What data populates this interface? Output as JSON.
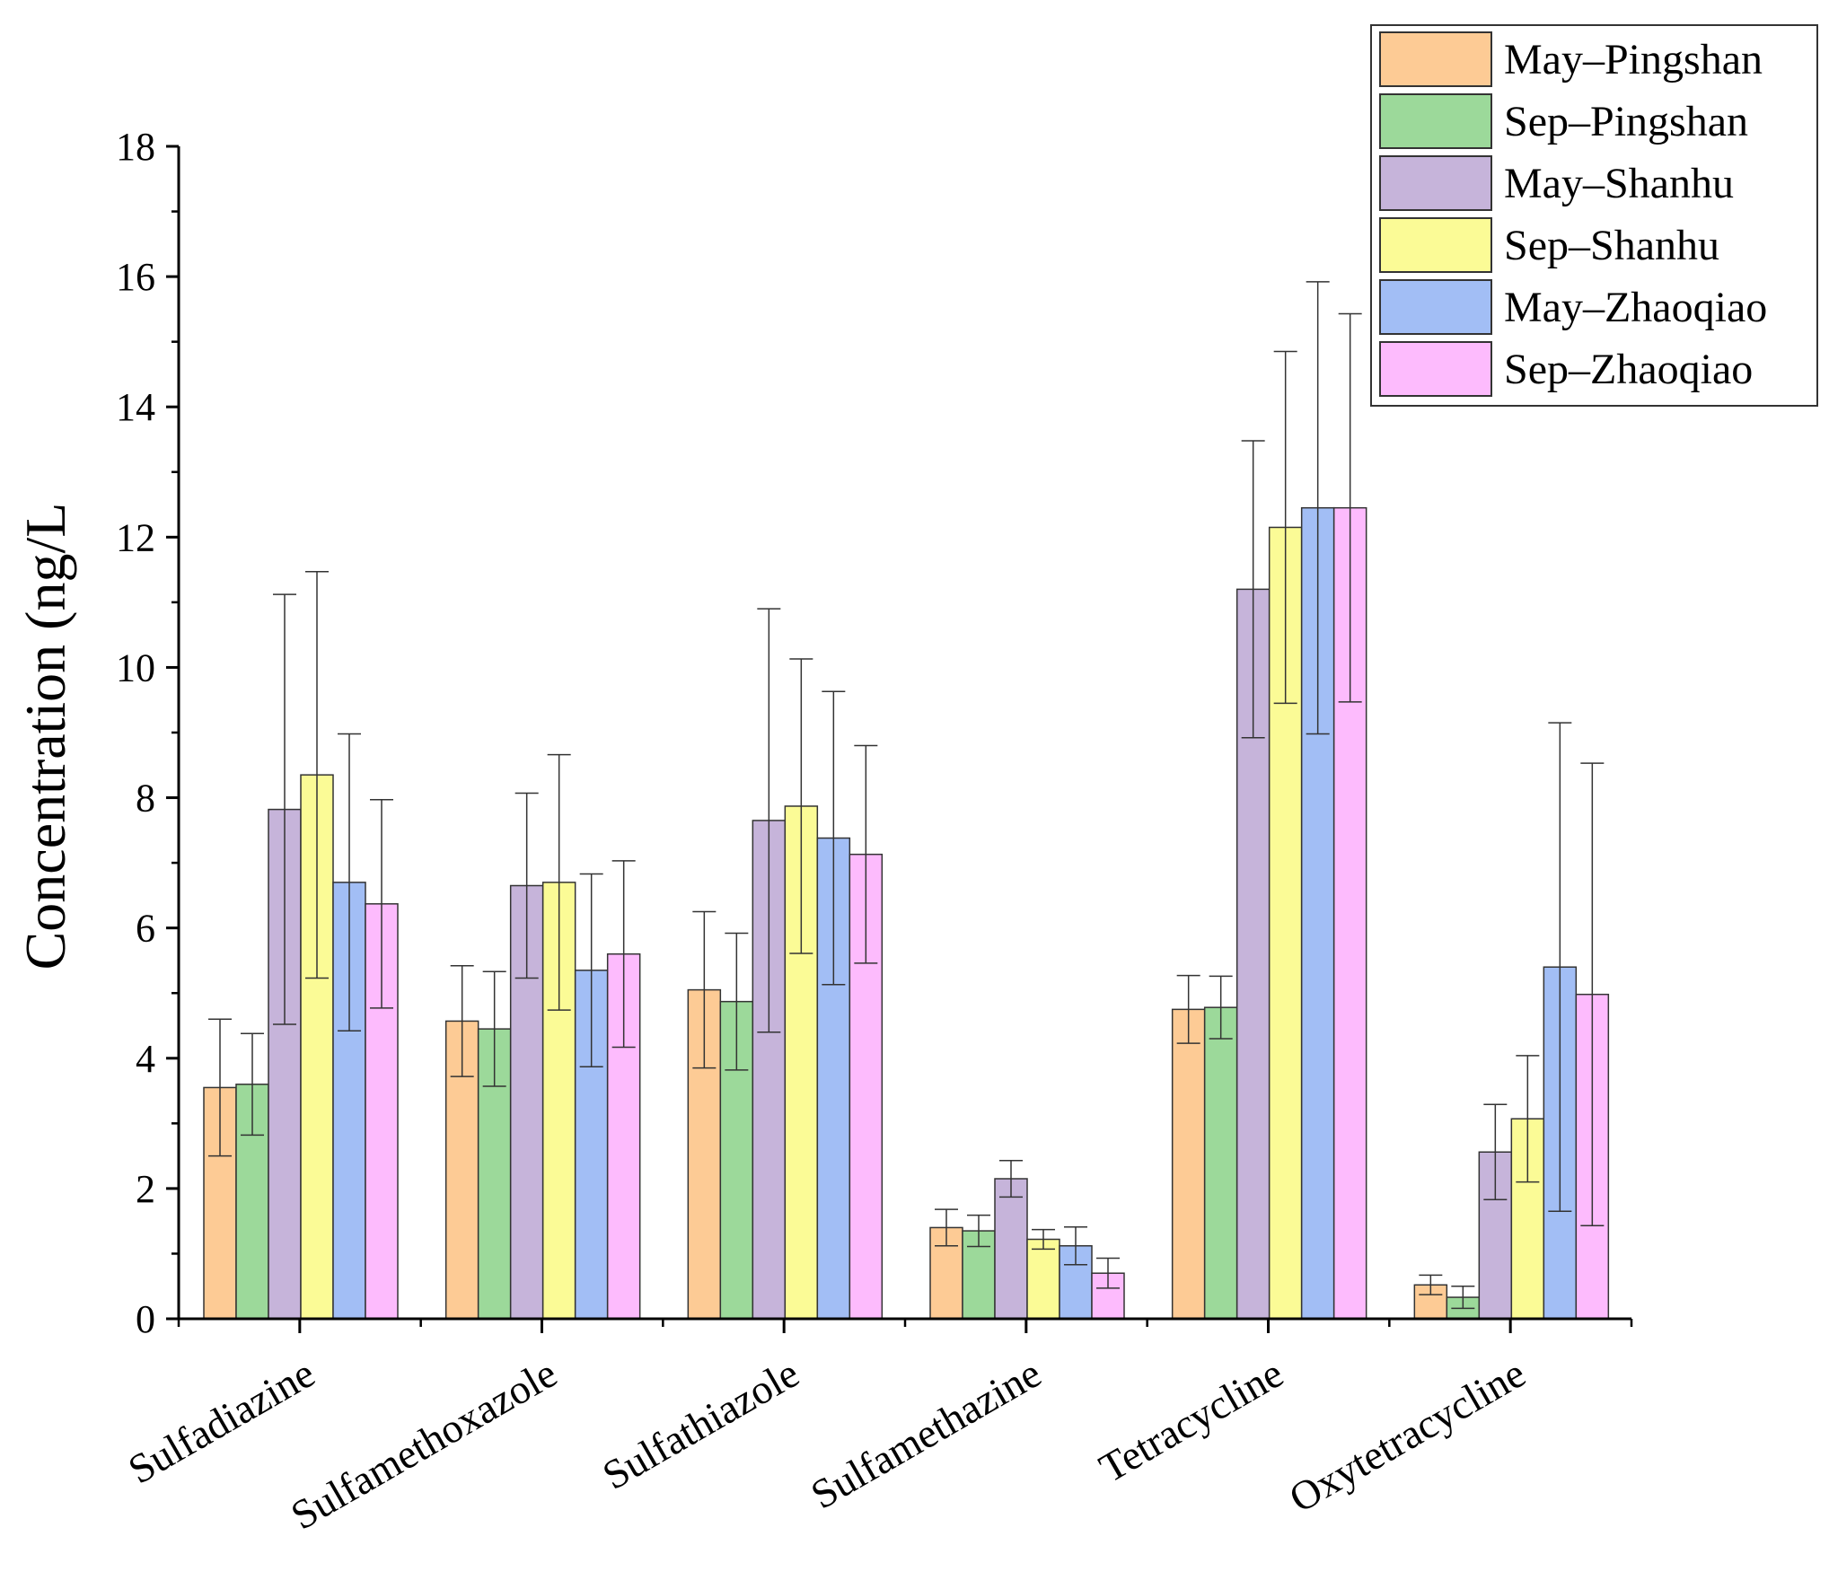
{
  "chart_data": {
    "type": "bar",
    "title": "",
    "xlabel": "",
    "ylabel": "Concentration (ng/L",
    "ylim": [
      0,
      18
    ],
    "yticks": [
      0,
      2,
      4,
      6,
      8,
      10,
      12,
      14,
      16,
      18
    ],
    "legend_position": "top-right",
    "categories": [
      "Sulfadiazine",
      "Sulfamethoxazole",
      "Sulfathiazole",
      "Sulfamethazine",
      "Tetracycline",
      "Oxytetracycline"
    ],
    "series": [
      {
        "name": "May–Pingshan",
        "color": "#FDCB95",
        "values": [
          3.55,
          4.57,
          5.05,
          1.4,
          4.75,
          0.52
        ],
        "errors": [
          1.05,
          0.85,
          1.2,
          0.28,
          0.52,
          0.15
        ]
      },
      {
        "name": "Sep–Pingshan",
        "color": "#9CD99A",
        "values": [
          3.6,
          4.45,
          4.87,
          1.35,
          4.78,
          0.33
        ],
        "errors": [
          0.78,
          0.88,
          1.05,
          0.24,
          0.48,
          0.17
        ]
      },
      {
        "name": "May–Shanhu",
        "color": "#C6B4DA",
        "values": [
          7.82,
          6.65,
          7.65,
          2.15,
          11.2,
          2.56
        ],
        "errors": [
          3.3,
          1.42,
          3.25,
          0.28,
          2.28,
          0.73
        ]
      },
      {
        "name": "Sep–Shanhu",
        "color": "#FBFB96",
        "values": [
          8.35,
          6.7,
          7.87,
          1.22,
          12.15,
          3.07
        ],
        "errors": [
          3.12,
          1.96,
          2.26,
          0.15,
          2.7,
          0.97
        ]
      },
      {
        "name": "May–Zhaoqiao",
        "color": "#A2BEF5",
        "values": [
          6.7,
          5.35,
          7.38,
          1.12,
          12.45,
          5.4
        ],
        "errors": [
          2.28,
          1.48,
          2.25,
          0.29,
          3.47,
          3.75
        ]
      },
      {
        "name": "Sep–Zhaoqiao",
        "color": "#FDBBFD",
        "values": [
          6.37,
          5.6,
          7.13,
          0.7,
          12.45,
          4.98
        ],
        "errors": [
          1.6,
          1.43,
          1.67,
          0.23,
          2.98,
          3.55
        ]
      }
    ]
  }
}
